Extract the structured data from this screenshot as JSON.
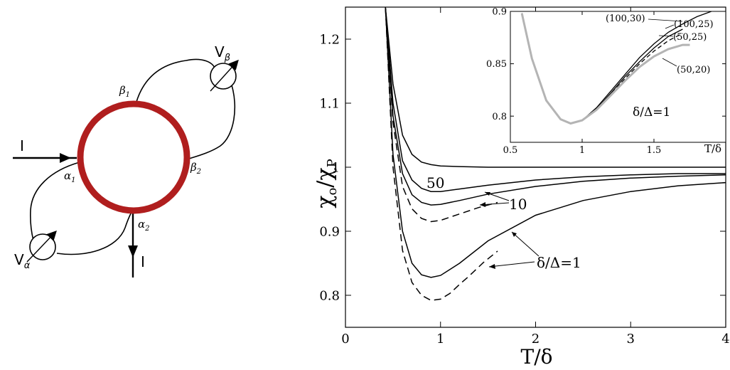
{
  "circuit": {
    "current_in_label": "I",
    "current_out_label": "I",
    "terminals": {
      "a1": "α",
      "a1_sub": "1",
      "a2": "α",
      "a2_sub": "2",
      "b1": "β",
      "b1_sub": "1",
      "b2": "β",
      "b2_sub": "2"
    },
    "sources": {
      "v_alpha": "V",
      "v_alpha_sub": "α",
      "v_beta": "V",
      "v_beta_sub": "β"
    },
    "colors": {
      "ring": "#b01e1e",
      "wire": "#000000"
    }
  },
  "chart_data": [
    {
      "type": "line",
      "ylabel_main": "χ",
      "ylabel_sub1": "o",
      "ylabel_sep": "/χ",
      "ylabel_sub2": "P",
      "xlabel": "T/δ",
      "xlim": [
        0,
        4
      ],
      "ylim": [
        0.75,
        1.25
      ],
      "xticks": [
        "0",
        "1",
        "2",
        "3",
        "4"
      ],
      "yticks": [
        "0.8",
        "0.9",
        "1",
        "1.1",
        "1.2"
      ],
      "series": [
        {
          "style": "solid",
          "x": [
            0.42,
            0.5,
            0.6,
            0.7,
            0.8,
            0.9,
            1.0,
            1.2,
            1.5,
            2.0,
            2.5,
            3.0,
            3.5,
            4.0
          ],
          "y": [
            1.25,
            1.13,
            1.05,
            1.02,
            1.008,
            1.004,
            1.002,
            1.001,
            1.0,
            1.0,
            1.0,
            1.0,
            1.0,
            1.0
          ]
        },
        {
          "style": "solid",
          "x": [
            0.42,
            0.5,
            0.6,
            0.7,
            0.8,
            0.9,
            1.0,
            1.2,
            1.5,
            2.0,
            2.5,
            3.0,
            3.5,
            4.0
          ],
          "y": [
            1.25,
            1.1,
            1.01,
            0.98,
            0.967,
            0.962,
            0.962,
            0.966,
            0.972,
            0.98,
            0.985,
            0.988,
            0.99,
            0.99
          ]
        },
        {
          "style": "solid",
          "x": [
            0.42,
            0.5,
            0.6,
            0.7,
            0.8,
            0.9,
            1.0,
            1.2,
            1.5,
            2.0,
            2.5,
            3.0,
            3.5,
            4.0
          ],
          "y": [
            1.25,
            1.08,
            0.99,
            0.957,
            0.945,
            0.941,
            0.942,
            0.948,
            0.958,
            0.97,
            0.978,
            0.983,
            0.986,
            0.988
          ]
        },
        {
          "style": "dashed",
          "x": [
            0.42,
            0.5,
            0.6,
            0.7,
            0.8,
            0.9,
            1.0,
            1.2,
            1.4,
            1.6
          ],
          "y": [
            1.25,
            1.07,
            0.97,
            0.935,
            0.92,
            0.915,
            0.917,
            0.927,
            0.937,
            0.945
          ]
        },
        {
          "style": "solid",
          "x": [
            0.42,
            0.5,
            0.6,
            0.7,
            0.8,
            0.9,
            1.0,
            1.2,
            1.5,
            2.0,
            2.5,
            3.0,
            3.5,
            4.0
          ],
          "y": [
            1.25,
            1.02,
            0.9,
            0.85,
            0.832,
            0.828,
            0.831,
            0.85,
            0.885,
            0.925,
            0.948,
            0.962,
            0.971,
            0.976
          ]
        },
        {
          "style": "dashed",
          "x": [
            0.42,
            0.5,
            0.6,
            0.7,
            0.8,
            0.9,
            1.0,
            1.1,
            1.2,
            1.3,
            1.45,
            1.6
          ],
          "y": [
            1.25,
            1.0,
            0.87,
            0.82,
            0.8,
            0.792,
            0.794,
            0.803,
            0.817,
            0.83,
            0.851,
            0.869
          ]
        }
      ],
      "annotations": [
        "50",
        "10",
        "δ/Δ=1"
      ]
    },
    {
      "type": "line",
      "xlabel": "T/δ",
      "xlim": [
        0.5,
        2.0
      ],
      "ylim": [
        0.775,
        0.9
      ],
      "xticks": [
        "0.5",
        "1",
        "1.5"
      ],
      "yticks": [
        "0.8",
        "0.85",
        "0.9"
      ],
      "series": [
        {
          "name": "(100,30)",
          "style": "solid",
          "color": "#000000",
          "x": [
            0.58,
            0.65,
            0.75,
            0.85,
            0.92,
            1.0,
            1.1,
            1.2,
            1.3,
            1.4,
            1.5,
            1.6,
            1.7,
            1.8,
            1.9
          ],
          "y": [
            0.898,
            0.855,
            0.815,
            0.797,
            0.793,
            0.796,
            0.808,
            0.824,
            0.84,
            0.856,
            0.869,
            0.88,
            0.888,
            0.895,
            0.9
          ]
        },
        {
          "name": "(100,25)",
          "style": "solid",
          "color": "#000000",
          "x": [
            0.58,
            0.65,
            0.75,
            0.85,
            0.92,
            1.0,
            1.1,
            1.2,
            1.3,
            1.4,
            1.5,
            1.6,
            1.7
          ],
          "y": [
            0.898,
            0.855,
            0.815,
            0.797,
            0.793,
            0.796,
            0.807,
            0.822,
            0.838,
            0.852,
            0.865,
            0.876,
            0.883
          ]
        },
        {
          "name": "(50,25)",
          "style": "dashed",
          "color": "#000000",
          "x": [
            0.58,
            0.65,
            0.75,
            0.85,
            0.92,
            1.0,
            1.1,
            1.2,
            1.3,
            1.4,
            1.5,
            1.6,
            1.7
          ],
          "y": [
            0.898,
            0.855,
            0.815,
            0.797,
            0.793,
            0.796,
            0.806,
            0.821,
            0.836,
            0.85,
            0.862,
            0.872,
            0.879
          ]
        },
        {
          "name": "(50,20)",
          "style": "solid",
          "color": "#b4b4b4",
          "x": [
            0.58,
            0.65,
            0.75,
            0.85,
            0.92,
            1.0,
            1.1,
            1.2,
            1.3,
            1.4,
            1.5,
            1.6,
            1.7,
            1.75
          ],
          "y": [
            0.898,
            0.855,
            0.815,
            0.797,
            0.793,
            0.796,
            0.806,
            0.82,
            0.834,
            0.847,
            0.857,
            0.864,
            0.868,
            0.868
          ]
        }
      ],
      "annotations": [
        "(100,30)",
        "(100,25)",
        "(50,25)",
        "(50,20)",
        "δ/Δ=1"
      ]
    }
  ]
}
